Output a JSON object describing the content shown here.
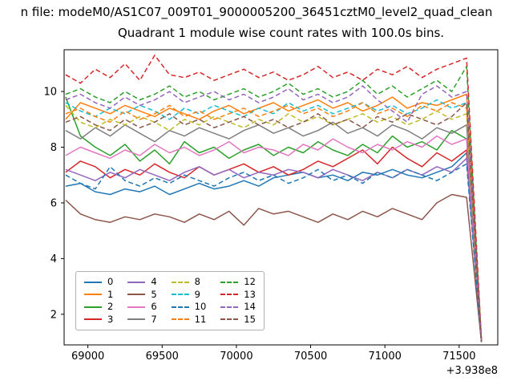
{
  "figure": {
    "suptitle": "n file: modeM0/AS1C07_009T01_9000005200_36451cztM0_level2_quad_clean",
    "title": "Quadrant 1 module wise count rates with 100.0s bins."
  },
  "chart_data": {
    "type": "line",
    "title": "Quadrant 1 module wise count rates with 100.0s bins.",
    "xlabel": "",
    "ylabel": "",
    "x_offset_label": "+3.938e8",
    "xlim": [
      68840,
      71760
    ],
    "ylim": [
      0.9,
      11.5
    ],
    "xticks": [
      69000,
      69500,
      70000,
      70500,
      71000,
      71500
    ],
    "yticks": [
      2,
      4,
      6,
      8,
      10
    ],
    "grid": false,
    "legend_position": "lower left",
    "x": [
      68850,
      68950,
      69050,
      69150,
      69250,
      69350,
      69450,
      69550,
      69650,
      69750,
      69850,
      69950,
      70050,
      70150,
      70250,
      70350,
      70450,
      70550,
      70650,
      70750,
      70850,
      70950,
      71050,
      71150,
      71250,
      71350,
      71450,
      71550,
      71650
    ],
    "series": [
      {
        "name": "0",
        "color": "#1f77b4",
        "dash": false,
        "values": [
          6.6,
          6.7,
          6.4,
          6.3,
          6.5,
          6.4,
          6.6,
          6.3,
          6.5,
          6.7,
          6.5,
          6.6,
          6.8,
          6.6,
          6.9,
          7.0,
          7.1,
          6.9,
          7.0,
          6.8,
          7.1,
          7.0,
          7.2,
          7.0,
          6.9,
          7.1,
          7.3,
          7.8,
          1.0
        ]
      },
      {
        "name": "1",
        "color": "#ff7f0e",
        "dash": false,
        "values": [
          9.0,
          9.6,
          9.4,
          9.2,
          9.5,
          9.3,
          9.1,
          9.4,
          9.2,
          9.0,
          9.3,
          9.5,
          9.2,
          9.4,
          9.6,
          9.3,
          9.5,
          9.7,
          9.4,
          9.6,
          9.3,
          9.5,
          9.8,
          9.4,
          9.6,
          9.5,
          9.7,
          9.9,
          1.1
        ]
      },
      {
        "name": "2",
        "color": "#2ca02c",
        "dash": false,
        "values": [
          9.8,
          8.4,
          8.0,
          7.7,
          8.1,
          7.5,
          7.9,
          7.4,
          8.2,
          7.8,
          8.0,
          7.6,
          7.9,
          8.1,
          7.7,
          8.0,
          7.8,
          8.2,
          7.9,
          7.7,
          8.1,
          7.8,
          8.4,
          8.0,
          8.2,
          7.9,
          8.6,
          8.3,
          1.0
        ]
      },
      {
        "name": "3",
        "color": "#d62728",
        "dash": false,
        "values": [
          7.1,
          7.5,
          7.3,
          6.9,
          7.2,
          7.0,
          7.4,
          7.1,
          6.9,
          7.3,
          7.0,
          7.2,
          7.4,
          7.1,
          7.3,
          7.0,
          7.2,
          7.5,
          7.3,
          7.6,
          7.9,
          7.4,
          8.0,
          7.6,
          7.3,
          7.8,
          7.5,
          7.9,
          1.0
        ]
      },
      {
        "name": "4",
        "color": "#9467bd",
        "dash": false,
        "values": [
          7.2,
          7.0,
          6.8,
          7.1,
          6.9,
          7.2,
          7.0,
          6.8,
          7.1,
          7.3,
          7.0,
          7.2,
          6.9,
          7.1,
          7.0,
          7.2,
          7.1,
          6.9,
          7.2,
          7.0,
          6.8,
          7.1,
          6.9,
          7.2,
          7.0,
          7.3,
          7.1,
          7.6,
          1.0
        ]
      },
      {
        "name": "5",
        "color": "#8c564b",
        "dash": false,
        "values": [
          6.1,
          5.6,
          5.4,
          5.3,
          5.5,
          5.4,
          5.6,
          5.5,
          5.3,
          5.6,
          5.4,
          5.7,
          5.2,
          5.8,
          5.6,
          5.7,
          5.5,
          5.3,
          5.6,
          5.4,
          5.7,
          5.5,
          5.8,
          5.6,
          5.4,
          6.0,
          6.3,
          6.2,
          1.0
        ]
      },
      {
        "name": "6",
        "color": "#e377c2",
        "dash": false,
        "values": [
          7.7,
          8.0,
          7.8,
          7.6,
          7.9,
          7.7,
          8.1,
          7.8,
          8.0,
          7.7,
          7.9,
          8.2,
          7.8,
          8.0,
          7.9,
          7.7,
          8.1,
          7.9,
          8.3,
          8.0,
          7.8,
          8.1,
          7.9,
          8.2,
          8.0,
          8.4,
          8.1,
          8.3,
          1.0
        ]
      },
      {
        "name": "7",
        "color": "#7f7f7f",
        "dash": false,
        "values": [
          8.6,
          8.3,
          8.7,
          8.4,
          8.8,
          8.5,
          8.2,
          8.6,
          8.4,
          8.7,
          8.5,
          8.3,
          8.6,
          8.8,
          8.5,
          8.7,
          8.4,
          8.6,
          8.9,
          8.5,
          8.7,
          8.4,
          8.8,
          8.6,
          8.3,
          8.7,
          8.5,
          8.8,
          1.0
        ]
      },
      {
        "name": "8",
        "color": "#bcbd22",
        "dash": true,
        "values": [
          9.5,
          8.9,
          8.7,
          9.0,
          8.8,
          9.1,
          8.9,
          8.6,
          9.0,
          8.8,
          9.1,
          8.9,
          8.7,
          9.0,
          8.8,
          9.2,
          8.9,
          9.1,
          8.8,
          9.0,
          9.2,
          8.9,
          9.1,
          8.8,
          9.0,
          9.3,
          9.0,
          9.2,
          1.1
        ]
      },
      {
        "name": "9",
        "color": "#17becf",
        "dash": true,
        "values": [
          9.6,
          9.3,
          9.1,
          9.4,
          9.2,
          9.5,
          9.3,
          9.0,
          9.4,
          9.2,
          9.5,
          9.3,
          9.1,
          9.4,
          9.2,
          9.6,
          9.3,
          9.5,
          9.2,
          9.4,
          9.6,
          9.3,
          9.5,
          9.2,
          9.4,
          9.7,
          9.4,
          9.6,
          1.0
        ]
      },
      {
        "name": "10",
        "color": "#1f77b4",
        "dash": true,
        "values": [
          7.0,
          6.7,
          6.5,
          7.3,
          6.8,
          6.6,
          6.9,
          6.7,
          7.0,
          6.8,
          6.6,
          6.9,
          7.1,
          6.8,
          7.0,
          6.7,
          6.9,
          7.2,
          6.8,
          7.0,
          6.7,
          7.1,
          6.9,
          7.2,
          7.0,
          6.8,
          7.1,
          7.4,
          1.0
        ]
      },
      {
        "name": "11",
        "color": "#ff7f0e",
        "dash": true,
        "values": [
          9.2,
          9.4,
          9.1,
          8.9,
          9.3,
          9.0,
          9.2,
          9.5,
          9.1,
          9.3,
          9.0,
          9.2,
          9.4,
          9.1,
          9.3,
          9.5,
          9.2,
          9.4,
          9.1,
          9.3,
          9.6,
          9.2,
          9.4,
          9.1,
          9.5,
          9.3,
          9.6,
          9.4,
          1.1
        ]
      },
      {
        "name": "12",
        "color": "#2ca02c",
        "dash": true,
        "values": [
          9.9,
          10.1,
          9.8,
          9.6,
          10.0,
          9.7,
          9.9,
          10.2,
          9.8,
          10.0,
          9.7,
          9.9,
          10.1,
          9.8,
          10.0,
          10.3,
          9.9,
          10.1,
          9.8,
          10.0,
          10.4,
          9.9,
          10.2,
          9.8,
          10.1,
          10.4,
          10.0,
          10.9,
          1.0
        ]
      },
      {
        "name": "13",
        "color": "#d62728",
        "dash": true,
        "values": [
          10.6,
          10.3,
          10.8,
          10.5,
          11.0,
          10.4,
          11.3,
          10.6,
          10.5,
          10.7,
          10.4,
          10.6,
          10.8,
          10.5,
          10.7,
          10.4,
          10.6,
          10.9,
          10.5,
          10.7,
          10.4,
          10.8,
          10.6,
          10.9,
          10.5,
          10.8,
          11.0,
          11.2,
          1.1
        ]
      },
      {
        "name": "14",
        "color": "#9467bd",
        "dash": true,
        "values": [
          9.7,
          9.9,
          9.6,
          9.4,
          9.8,
          9.5,
          9.7,
          10.0,
          9.6,
          9.8,
          10.0,
          9.7,
          9.9,
          9.6,
          9.8,
          10.1,
          9.7,
          9.9,
          9.6,
          9.8,
          10.2,
          9.7,
          9.3,
          8.9,
          9.9,
          10.2,
          9.8,
          10.0,
          1.0
        ]
      },
      {
        "name": "15",
        "color": "#8c564b",
        "dash": true,
        "values": [
          8.9,
          9.1,
          8.8,
          8.6,
          9.0,
          8.7,
          8.9,
          9.2,
          8.8,
          9.0,
          8.7,
          8.9,
          9.1,
          8.8,
          9.0,
          8.7,
          8.9,
          9.2,
          8.8,
          9.0,
          8.7,
          9.1,
          8.9,
          9.2,
          9.0,
          8.8,
          9.1,
          9.6,
          1.0
        ]
      }
    ]
  }
}
